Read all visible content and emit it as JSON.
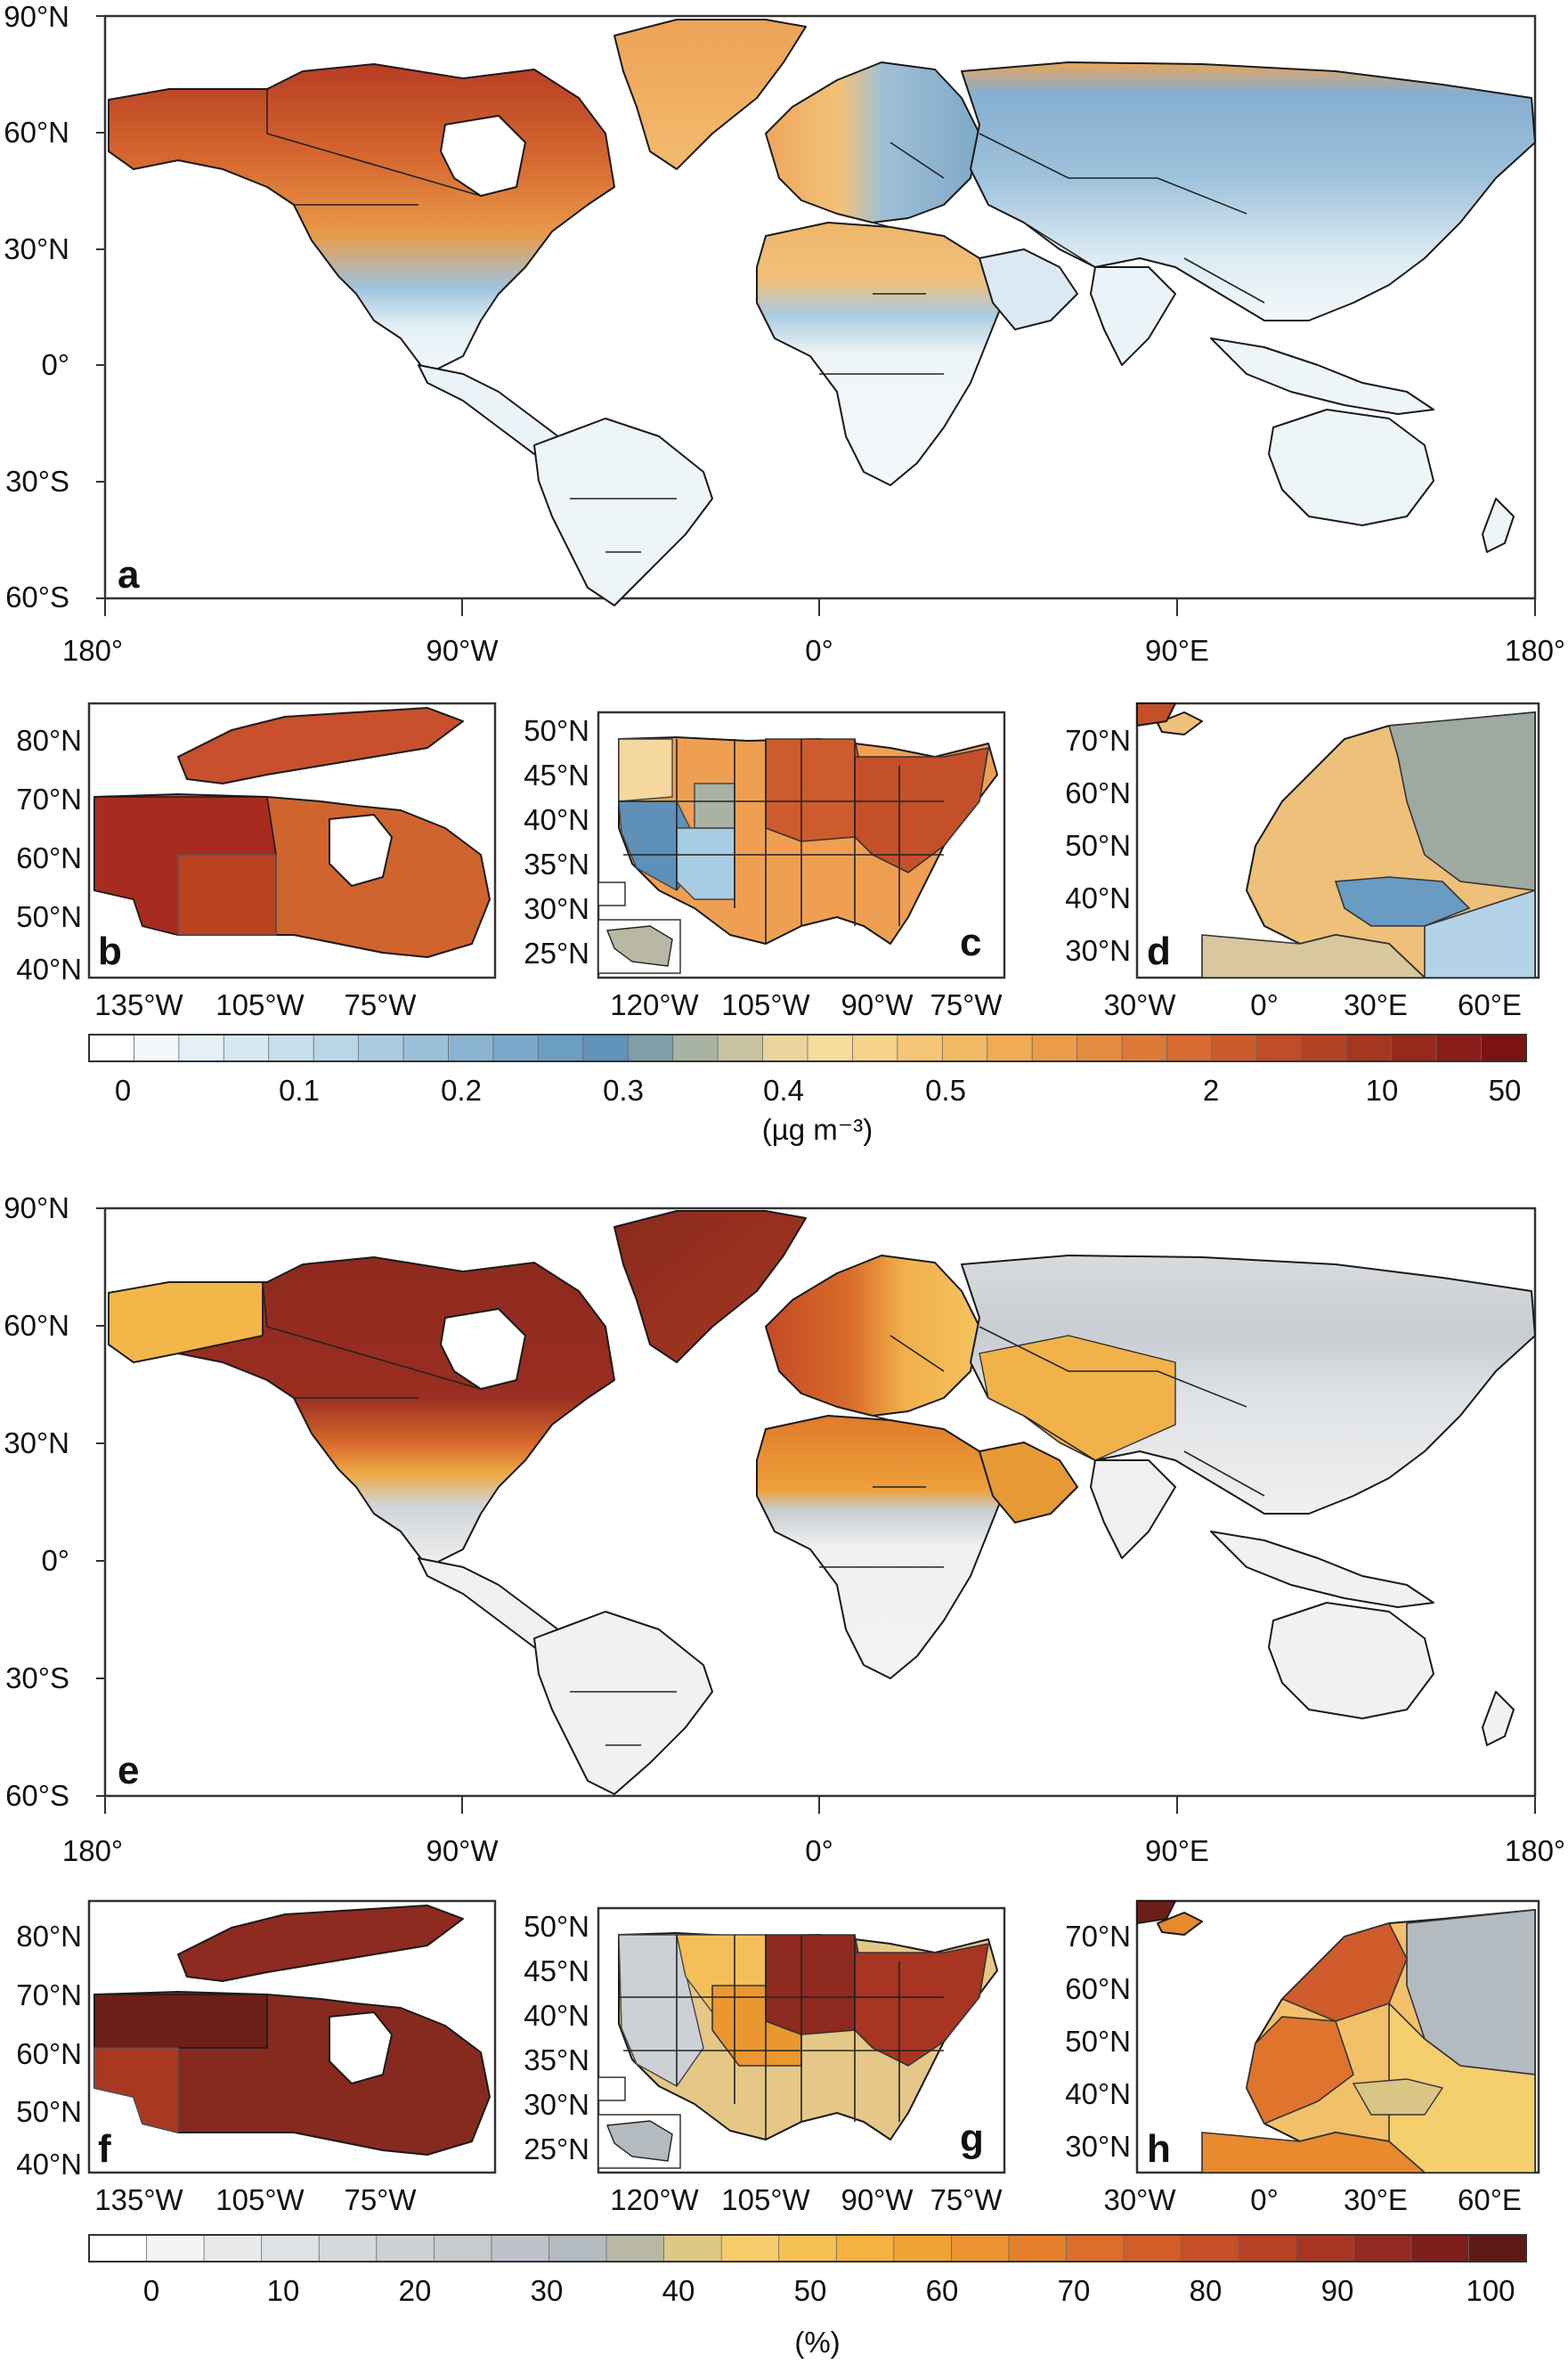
{
  "world_lat_labels": [
    "90°N",
    "60°N",
    "30°N",
    "0°",
    "30°S",
    "60°S"
  ],
  "world_lon_labels": [
    "180°",
    "90°W",
    "0°",
    "90°E",
    "180°"
  ],
  "panels": {
    "a": "a",
    "b": "b",
    "c": "c",
    "d": "d",
    "e": "e",
    "f": "f",
    "g": "g",
    "h": "h"
  },
  "canada_lat_labels": [
    "80°N",
    "70°N",
    "60°N",
    "50°N",
    "40°N"
  ],
  "canada_lon_labels": [
    "135°W",
    "105°W",
    "75°W"
  ],
  "usa_lat_labels": [
    "50°N",
    "45°N",
    "40°N",
    "35°N",
    "30°N",
    "25°N"
  ],
  "usa_lon_labels": [
    "120°W",
    "105°W",
    "90°W",
    "75°W"
  ],
  "europe_lat_labels": [
    "70°N",
    "60°N",
    "50°N",
    "40°N",
    "30°N"
  ],
  "europe_lon_labels": [
    "30°W",
    "0°",
    "30°E",
    "60°E"
  ],
  "colorbar1": {
    "ticks": [
      "0",
      "0.1",
      "0.2",
      "0.3",
      "0.4",
      "0.5",
      "2",
      "10",
      "50"
    ],
    "unit": "(µg m⁻³)",
    "colors": [
      "#ffffff",
      "#f1f7fa",
      "#e4f0f6",
      "#d6e8f1",
      "#c8dfeb",
      "#b9d5e6",
      "#aacbe0",
      "#9bc0d9",
      "#8bb4d2",
      "#7ba8ca",
      "#6c9dc2",
      "#5f93ba",
      "#7f9ea8",
      "#a8b3a3",
      "#c9c39f",
      "#e9d59c",
      "#f6dd9d",
      "#f6d28a",
      "#f4c676",
      "#f2b964",
      "#efac55",
      "#eb9c49",
      "#e58b40",
      "#de7a38",
      "#d66a31",
      "#cc5b2c",
      "#c04d27",
      "#b34123",
      "#a5361f",
      "#97291b",
      "#881c17",
      "#7a1312"
    ]
  },
  "colorbar2": {
    "ticks": [
      "0",
      "10",
      "20",
      "30",
      "40",
      "50",
      "60",
      "70",
      "80",
      "90",
      "100"
    ],
    "unit": "(%)",
    "colors": [
      "#ffffff",
      "#f3f4f5",
      "#e8eaec",
      "#dfe2e5",
      "#d5d9dd",
      "#cdd2d6",
      "#c6cbd0",
      "#bdc3c8",
      "#b3bac0",
      "#b8b8a5",
      "#dfc886",
      "#f6cc6b",
      "#f5c054",
      "#f3b241",
      "#f0a436",
      "#eb9330",
      "#e4802c",
      "#dc6e2a",
      "#d15e29",
      "#c54f28",
      "#b64326",
      "#a53624",
      "#932a21",
      "#7e1f1c",
      "#5c1a17"
    ]
  },
  "colors": {
    "land_low_a": "#eef5f8",
    "land_low_e": "#f0f1f2"
  }
}
